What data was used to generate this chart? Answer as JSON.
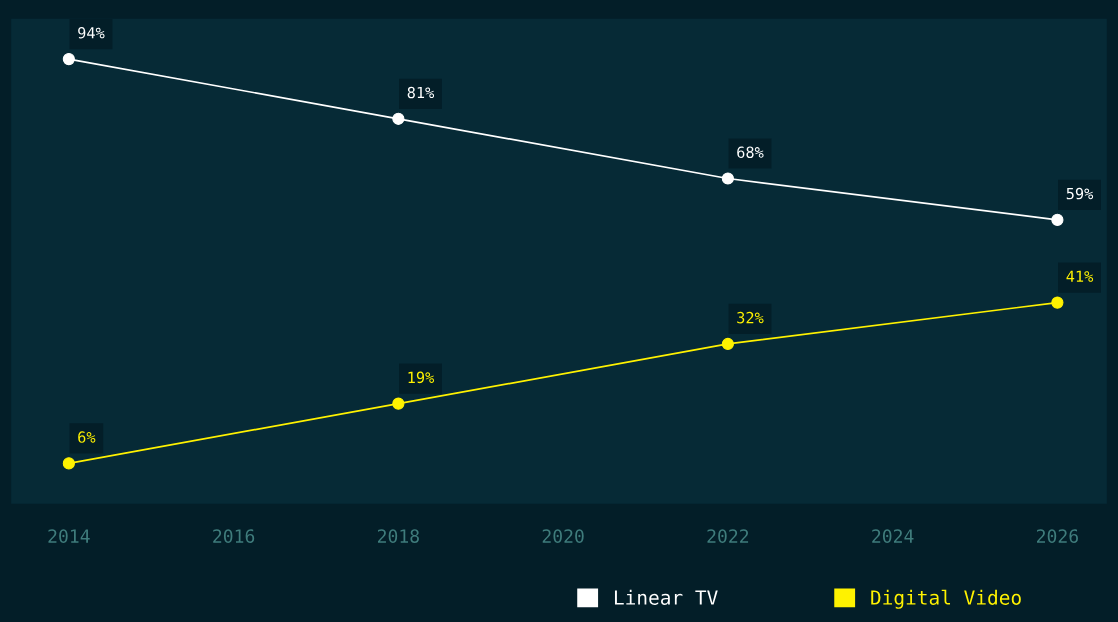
{
  "chart_data": {
    "type": "line",
    "x": [
      2014,
      2018,
      2022,
      2026
    ],
    "series": [
      {
        "name": "Linear TV",
        "color": "#ffffff",
        "values": [
          94,
          81,
          68,
          59
        ],
        "value_labels": [
          "94%",
          "81%",
          "68%",
          "59%"
        ]
      },
      {
        "name": "Digital Video",
        "color": "#fff200",
        "values": [
          6,
          19,
          32,
          41
        ],
        "value_labels": [
          "6%",
          "19%",
          "32%",
          "41%"
        ]
      }
    ],
    "xlim": [
      2013.3,
      2026.6
    ],
    "xticks": [
      2014,
      2016,
      2018,
      2020,
      2022,
      2024,
      2026
    ],
    "tick_labels": "x",
    "marker": "circle",
    "line_style": "solid",
    "grid": false,
    "legend": "bottom"
  }
}
